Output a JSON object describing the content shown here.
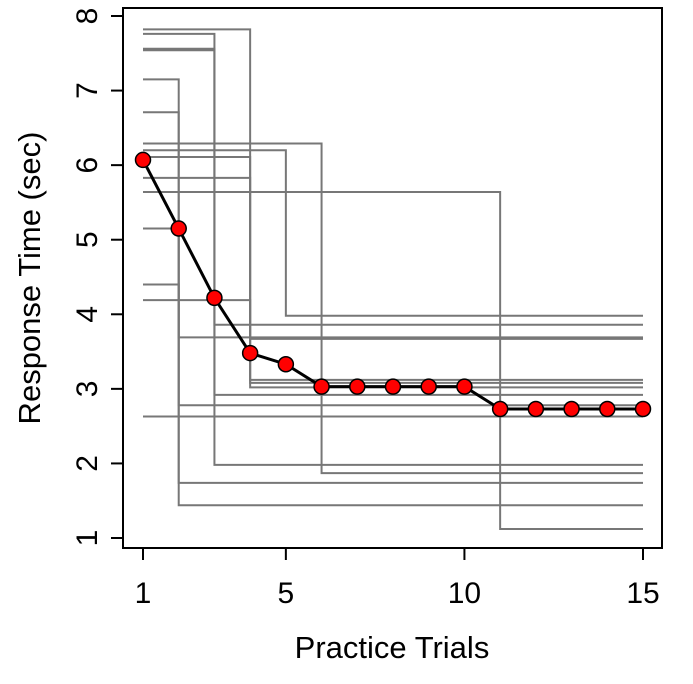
{
  "chart_data": {
    "type": "line",
    "title": "",
    "xlabel": "Practice Trials",
    "ylabel": "Response Time (sec)",
    "xlim": [
      1,
      15
    ],
    "ylim": [
      1,
      8
    ],
    "xticks": [
      1,
      5,
      10,
      15
    ],
    "yticks": [
      1,
      2,
      3,
      4,
      5,
      6,
      7,
      8
    ],
    "grid": false,
    "colors": {
      "mean_marker": "#ff0000",
      "mean_line": "#000000",
      "individual": "#777777"
    },
    "mean_series": {
      "x": [
        1,
        2,
        3,
        4,
        5,
        6,
        7,
        8,
        9,
        10,
        11,
        12,
        13,
        14,
        15
      ],
      "y": [
        6.07,
        5.15,
        4.22,
        3.48,
        3.33,
        3.03,
        3.03,
        3.03,
        3.03,
        3.03,
        2.73,
        2.73,
        2.73,
        2.73,
        2.73
      ]
    },
    "individual_steps": [
      {
        "start": 7.15,
        "drop_trial": 2,
        "end": 3.69
      },
      {
        "start": 6.71,
        "drop_trial": 2,
        "end": 2.78
      },
      {
        "start": 5.15,
        "drop_trial": 2,
        "end": 1.74
      },
      {
        "start": 4.4,
        "drop_trial": 2,
        "end": 1.44
      },
      {
        "start": 7.76,
        "drop_trial": 3,
        "end": 3.86
      },
      {
        "start": 7.56,
        "drop_trial": 3,
        "end": 2.92
      },
      {
        "start": 7.54,
        "drop_trial": 3,
        "end": 1.98
      },
      {
        "start": 7.82,
        "drop_trial": 4,
        "end": 3.67
      },
      {
        "start": 6.11,
        "drop_trial": 4,
        "end": 3.12
      },
      {
        "start": 5.83,
        "drop_trial": 4,
        "end": 3.08
      },
      {
        "start": 4.19,
        "drop_trial": 4,
        "end": 3.02
      },
      {
        "start": 6.2,
        "drop_trial": 5,
        "end": 3.98
      },
      {
        "start": 6.29,
        "drop_trial": 6,
        "end": 1.87
      },
      {
        "start": 5.64,
        "drop_trial": 11,
        "end": 1.12
      },
      {
        "start": 2.63,
        "drop_trial": 15,
        "end": 2.63
      }
    ]
  }
}
